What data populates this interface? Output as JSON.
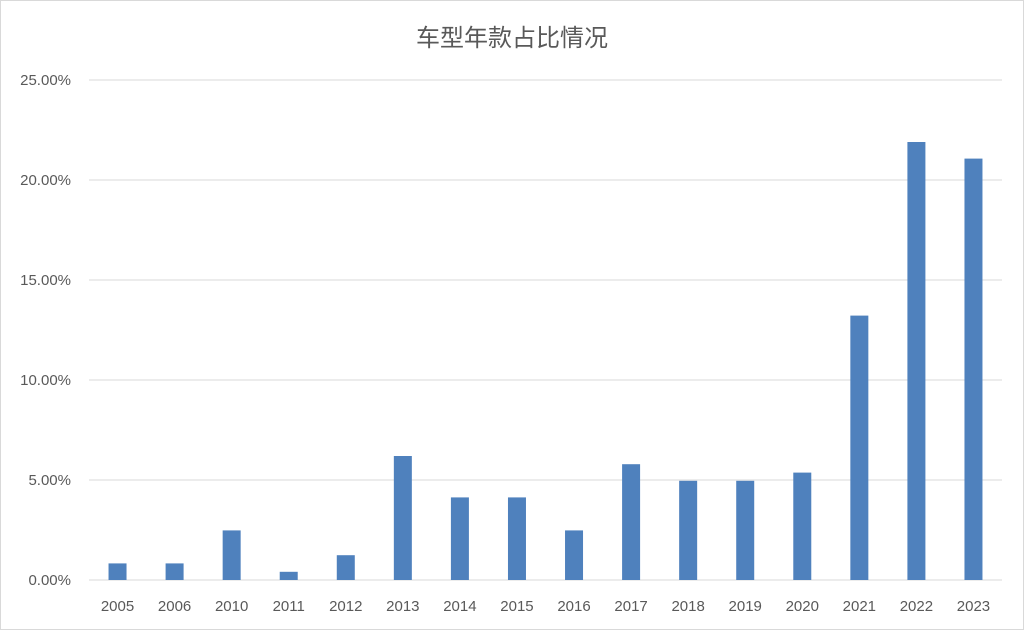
{
  "chart_data": {
    "type": "bar",
    "title": "车型年款占比情况",
    "xlabel": "",
    "ylabel": "",
    "categories": [
      "2005",
      "2006",
      "2010",
      "2011",
      "2012",
      "2013",
      "2014",
      "2015",
      "2016",
      "2017",
      "2018",
      "2019",
      "2020",
      "2021",
      "2022",
      "2023"
    ],
    "values": [
      0.83,
      0.83,
      2.48,
      0.41,
      1.24,
      6.2,
      4.13,
      4.13,
      2.48,
      5.79,
      4.96,
      4.96,
      5.37,
      13.22,
      21.9,
      21.07
    ],
    "value_unit": "percent",
    "ylim": [
      0,
      25
    ],
    "yticks": [
      0,
      5,
      10,
      15,
      20,
      25
    ],
    "ytick_labels": [
      "0.00%",
      "5.00%",
      "10.00%",
      "15.00%",
      "20.00%",
      "25.00%"
    ],
    "grid": true,
    "legend": "none",
    "bar_color": "#4f81bd",
    "grid_color": "#d9d9d9"
  }
}
